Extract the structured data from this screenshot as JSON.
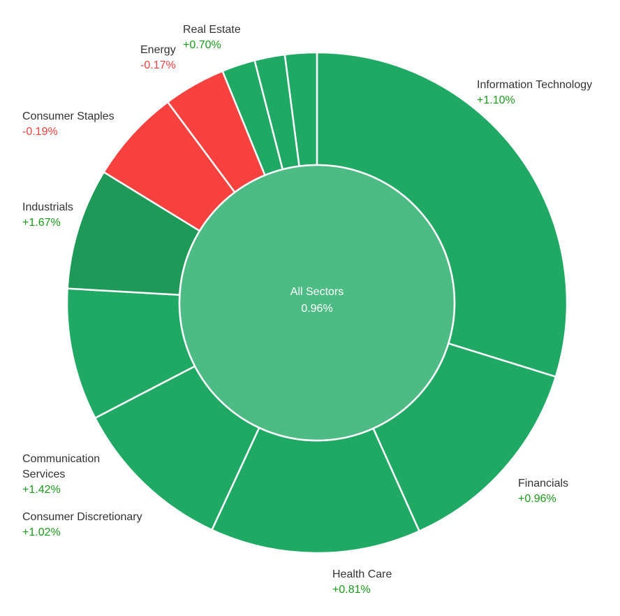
{
  "colors": {
    "positive": "#20a964",
    "positive_dark": "#1e9a58",
    "negative": "#f6413e",
    "center": "#4dbb84",
    "label_positive": "#1a9a1a",
    "label_negative": "#f04040"
  },
  "center": {
    "title": "All Sectors",
    "value": "0.96%"
  },
  "chart_data": {
    "type": "pie",
    "variant": "sunburst",
    "center_label": "All Sectors",
    "center_value": "0.96%",
    "slices": [
      {
        "name": "Information Technology",
        "change": "+1.10%",
        "weight": 30.4,
        "sign": "positive"
      },
      {
        "name": "Financials",
        "change": "+0.96%",
        "weight": 13.8,
        "sign": "positive"
      },
      {
        "name": "Health Care",
        "change": "+0.81%",
        "weight": 13.9,
        "sign": "positive"
      },
      {
        "name": "Consumer Discretionary",
        "change": "+1.02%",
        "weight": 10.7,
        "sign": "positive"
      },
      {
        "name": "Communication Services",
        "change": "+1.42%",
        "weight": 8.7,
        "sign": "positive"
      },
      {
        "name": "Industrials",
        "change": "+1.67%",
        "weight": 8.0,
        "sign": "positive"
      },
      {
        "name": "Consumer Staples",
        "change": "-0.19%",
        "weight": 6.2,
        "sign": "negative"
      },
      {
        "name": "Energy",
        "change": "-0.17%",
        "weight": 4.1,
        "sign": "negative"
      },
      {
        "name": "Real Estate",
        "change": "+0.70%",
        "weight": 2.2,
        "sign": "positive"
      },
      {
        "name": "",
        "change": "",
        "weight": 2.0,
        "sign": "positive"
      },
      {
        "name": "",
        "change": "",
        "weight": 2.1,
        "sign": "positive"
      }
    ]
  },
  "labels": [
    {
      "name": "Information Technology",
      "change": "+1.10%",
      "sign": "up"
    },
    {
      "name": "Financials",
      "change": "+0.96%",
      "sign": "up"
    },
    {
      "name": "Health Care",
      "change": "+0.81%",
      "sign": "up"
    },
    {
      "name": "Consumer Discretionary",
      "change": "+1.02%",
      "sign": "up"
    },
    {
      "name": "Communication Services",
      "change": "+1.42%",
      "sign": "up"
    },
    {
      "name": "Industrials",
      "change": "+1.67%",
      "sign": "up"
    },
    {
      "name": "Consumer Staples",
      "change": "-0.19%",
      "sign": "down"
    },
    {
      "name": "Energy",
      "change": "-0.17%",
      "sign": "down"
    },
    {
      "name": "Real Estate",
      "change": "+0.70%",
      "sign": "up"
    }
  ]
}
